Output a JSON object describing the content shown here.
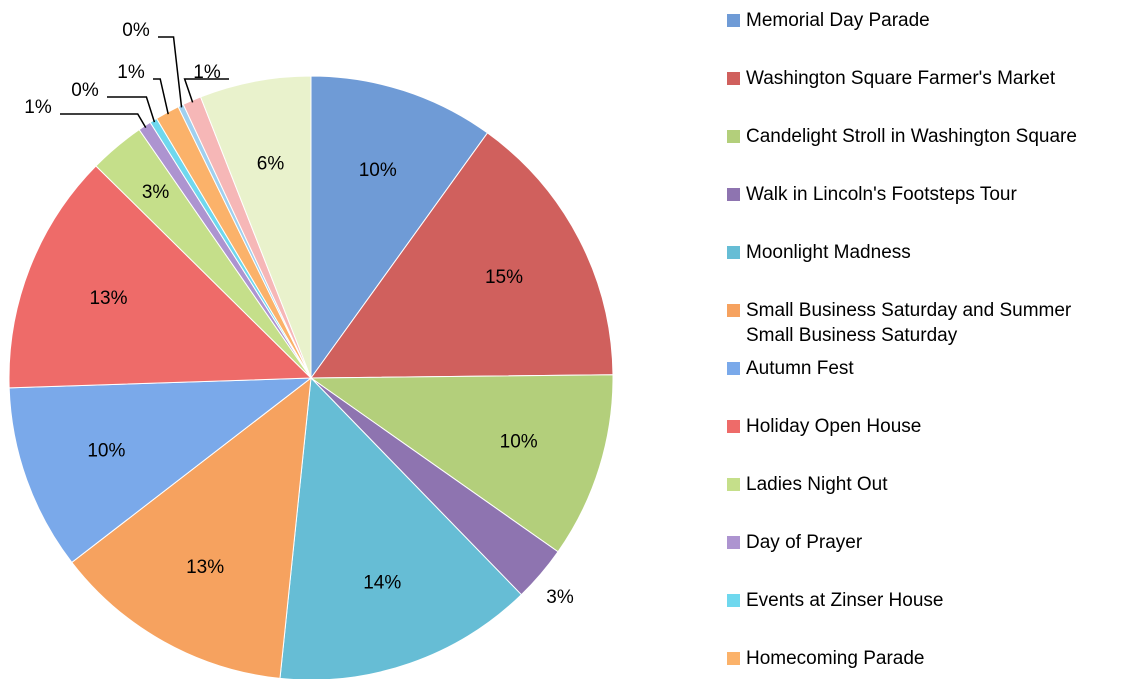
{
  "chart_data": {
    "type": "pie",
    "categories": [
      "Memorial Day Parade",
      "Washington Square Farmer's Market",
      "Candelight Stroll in Washington Square",
      "Walk in Lincoln's Footsteps Tour",
      "Moonlight Madness",
      "Small Business Saturday and Summer Small Business Saturday",
      "Autumn Fest",
      "Holiday Open House",
      "Ladies Night Out",
      "Day of Prayer",
      "Events at Zinser House",
      "Homecoming Parade",
      null,
      null,
      null
    ],
    "values": [
      10,
      15,
      10,
      3,
      14,
      13,
      10,
      13,
      3,
      0.7,
      0.4,
      1.3,
      0.3,
      1,
      6
    ],
    "value_labels": [
      "10%",
      "15%",
      "10%",
      "3%",
      "14%",
      "13%",
      "10%",
      "13%",
      "3%",
      "1%",
      "0%",
      "1%",
      "0%",
      "1%",
      "6%"
    ],
    "colors": [
      "#6f9bd6",
      "#d0605d",
      "#b3cf7b",
      "#8e74b0",
      "#66bdd5",
      "#f6a25f",
      "#7aa9ea",
      "#ee6b69",
      "#c5df8a",
      "#ad94d0",
      "#6fd8ee",
      "#fbb26a",
      "#9fd0f0",
      "#f6b7b7",
      "#e9f2cc"
    ],
    "legend": "right"
  }
}
